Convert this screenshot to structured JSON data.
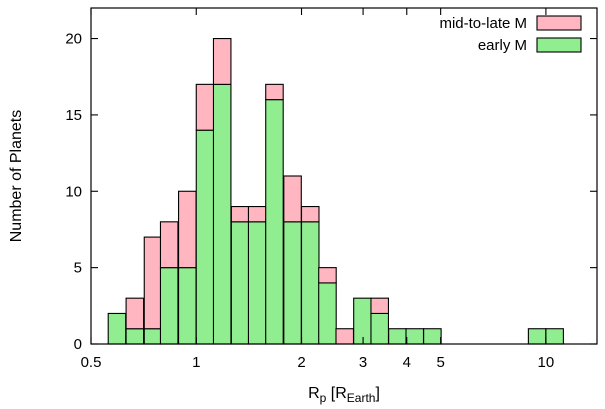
{
  "chart_data": {
    "type": "bar",
    "stacked": true,
    "x_scale": "log",
    "xlabel": {
      "main": "R",
      "sub": "p",
      "bracket_open": " [R",
      "bracket_sub": "Earth",
      "bracket_close": "]"
    },
    "ylabel": "Number of Planets",
    "xlim": [
      0.5,
      14
    ],
    "ylim": [
      0,
      22
    ],
    "bin_width_log10": 0.05,
    "x_ticks": [
      {
        "value": 0.5,
        "label": "0.5"
      },
      {
        "value": 1,
        "label": "1"
      },
      {
        "value": 2,
        "label": "2"
      },
      {
        "value": 3,
        "label": "3"
      },
      {
        "value": 4,
        "label": "4"
      },
      {
        "value": 5,
        "label": "5"
      },
      {
        "value": 10,
        "label": "10"
      }
    ],
    "y_ticks": [
      {
        "value": 0,
        "label": "0"
      },
      {
        "value": 5,
        "label": "5"
      },
      {
        "value": 10,
        "label": "10"
      },
      {
        "value": 15,
        "label": "15"
      },
      {
        "value": 20,
        "label": "20"
      }
    ],
    "bin_left_edges": [
      0.56,
      0.63,
      0.71,
      0.79,
      0.89,
      1.0,
      1.12,
      1.26,
      1.41,
      1.58,
      1.78,
      2.0,
      2.24,
      2.51,
      2.82,
      3.16,
      3.55,
      3.98,
      4.47,
      8.91,
      10.0
    ],
    "series": [
      {
        "name": "early M",
        "color": "#90ee90",
        "values": [
          2,
          1,
          1,
          5,
          5,
          14,
          17,
          8,
          8,
          16,
          8,
          8,
          4,
          0,
          3,
          2,
          1,
          1,
          1,
          1,
          1
        ]
      },
      {
        "name": "mid-to-late M",
        "color": "#ffb6c1",
        "values": [
          0,
          2,
          6,
          3,
          5,
          3,
          3,
          1,
          1,
          1,
          3,
          1,
          1,
          1,
          0,
          1,
          0,
          0,
          0,
          0,
          0
        ]
      }
    ],
    "legend_position": "top-right",
    "grid": false
  }
}
